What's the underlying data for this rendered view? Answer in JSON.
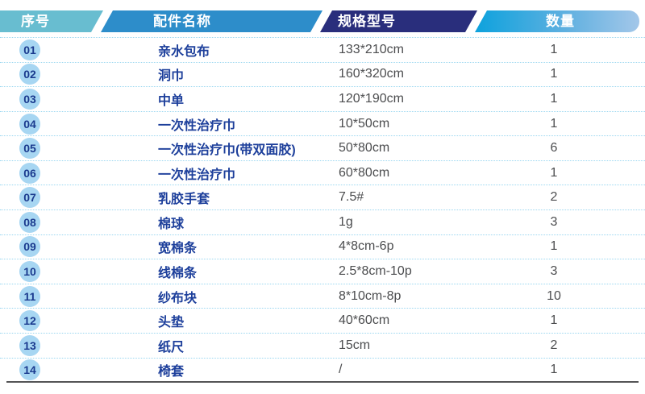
{
  "header": {
    "columns": [
      {
        "label": "序号"
      },
      {
        "label": "配件名称"
      },
      {
        "label": "规格型号"
      },
      {
        "label": "数量"
      }
    ]
  },
  "table": {
    "rows": [
      {
        "no": "01",
        "name": "亲水包布",
        "spec": "133*210cm",
        "qty": "1"
      },
      {
        "no": "02",
        "name": "洞巾",
        "spec": "160*320cm",
        "qty": "1"
      },
      {
        "no": "03",
        "name": "中单",
        "spec": "120*190cm",
        "qty": "1"
      },
      {
        "no": "04",
        "name": "一次性治疗巾",
        "spec": "10*50cm",
        "qty": "1"
      },
      {
        "no": "05",
        "name": "一次性治疗巾(带双面胶)",
        "spec": "50*80cm",
        "qty": "6"
      },
      {
        "no": "06",
        "name": "一次性治疗巾",
        "spec": "60*80cm",
        "qty": "1"
      },
      {
        "no": "07",
        "name": "乳胶手套",
        "spec": "7.5#",
        "qty": "2"
      },
      {
        "no": "08",
        "name": "棉球",
        "spec": "1g",
        "qty": "3"
      },
      {
        "no": "09",
        "name": "宽棉条",
        "spec": "4*8cm-6p",
        "qty": "1"
      },
      {
        "no": "10",
        "name": "线棉条",
        "spec": "2.5*8cm-10p",
        "qty": "3"
      },
      {
        "no": "11",
        "name": "纱布块",
        "spec": "8*10cm-8p",
        "qty": "10"
      },
      {
        "no": "12",
        "name": "头垫",
        "spec": "40*60cm",
        "qty": "1"
      },
      {
        "no": "13",
        "name": "纸尺",
        "spec": "15cm",
        "qty": "2"
      },
      {
        "no": "14",
        "name": "椅套",
        "spec": "/",
        "qty": "1"
      }
    ]
  },
  "colors": {
    "header_teal": "#68bdd0",
    "header_blue": "#2d8dca",
    "header_navy": "#292e7c",
    "header_gradient_start": "#0da2dd",
    "header_gradient_end": "#a3c7e9",
    "badge_fill": "#a7d6f2",
    "badge_text": "#1a3a8e",
    "name_text": "#1d3f9b",
    "body_text": "#4c4d4f",
    "row_separator": "#9bd7f0",
    "bottom_rule": "#545456"
  }
}
